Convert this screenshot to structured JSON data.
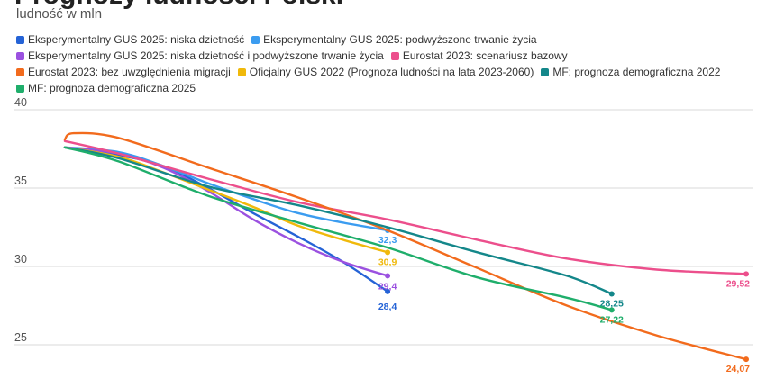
{
  "chart_data": {
    "type": "line",
    "title": "Prognozy ludności Polski",
    "subtitle": "ludność w mln",
    "xlabel": "",
    "ylabel": "ludność w mln",
    "x_range": [
      2023,
      2100
    ],
    "ylim": [
      23,
      40
    ],
    "y_ticks": [
      {
        "value": 25,
        "label": "25"
      },
      {
        "value": 30,
        "label": "30"
      },
      {
        "value": 35,
        "label": "35"
      },
      {
        "value": 40,
        "label": "40"
      }
    ],
    "grid": true,
    "legend_position": "top",
    "series": [
      {
        "name": "Eksperymentalny GUS 2025: niska dzietność",
        "color": "#2563d6",
        "points": [
          [
            2024,
            37.6
          ],
          [
            2030,
            37.1
          ],
          [
            2035,
            36.4
          ],
          [
            2040,
            35.0
          ],
          [
            2045,
            33.4
          ],
          [
            2050,
            31.9
          ],
          [
            2055,
            30.3
          ],
          [
            2060,
            28.4
          ]
        ],
        "end_label": "28,4",
        "label_dy": 20
      },
      {
        "name": "Eksperymentalny GUS 2025: podwyższone trwanie życia",
        "color": "#3b9cf0",
        "points": [
          [
            2024,
            37.6
          ],
          [
            2030,
            37.3
          ],
          [
            2035,
            36.4
          ],
          [
            2040,
            35.3
          ],
          [
            2045,
            34.3
          ],
          [
            2050,
            33.4
          ],
          [
            2055,
            32.8
          ],
          [
            2060,
            32.3
          ]
        ],
        "end_label": "32,3",
        "label_dy": 14
      },
      {
        "name": "Eksperymentalny GUS 2025: niska dzietność i podwyższone trwanie życia",
        "color": "#9b51e0",
        "points": [
          [
            2024,
            37.6
          ],
          [
            2030,
            37.2
          ],
          [
            2035,
            36.3
          ],
          [
            2040,
            34.8
          ],
          [
            2045,
            33.0
          ],
          [
            2050,
            31.5
          ],
          [
            2055,
            30.3
          ],
          [
            2060,
            29.4
          ]
        ],
        "end_label": "29,4",
        "label_dy": 15
      },
      {
        "name": "Eurostat 2023: scenariusz bazowy",
        "color": "#ec4f8c",
        "points": [
          [
            2024,
            38.0
          ],
          [
            2030,
            37.2
          ],
          [
            2040,
            35.6
          ],
          [
            2050,
            34.1
          ],
          [
            2060,
            33.0
          ],
          [
            2070,
            31.7
          ],
          [
            2080,
            30.5
          ],
          [
            2090,
            29.8
          ],
          [
            2100,
            29.52
          ]
        ],
        "end_label": "29,52",
        "label_dy": 14
      },
      {
        "name": "Eurostat 2023: bez uwzględnienia migracji",
        "color": "#f26b1d",
        "points": [
          [
            2024,
            38.1
          ],
          [
            2025,
            38.5
          ],
          [
            2030,
            38.2
          ],
          [
            2040,
            36.3
          ],
          [
            2050,
            34.4
          ],
          [
            2060,
            32.3
          ],
          [
            2070,
            29.9
          ],
          [
            2080,
            27.5
          ],
          [
            2090,
            25.6
          ],
          [
            2100,
            24.07
          ]
        ],
        "end_label": "24,07",
        "label_dy": 14
      },
      {
        "name": "Oficjalny GUS 2022 (Prognoza ludności na lata 2023-2060)",
        "color": "#f0b90b",
        "points": [
          [
            2024,
            37.6
          ],
          [
            2030,
            37.0
          ],
          [
            2035,
            36.0
          ],
          [
            2040,
            34.9
          ],
          [
            2045,
            33.8
          ],
          [
            2050,
            32.6
          ],
          [
            2055,
            31.7
          ],
          [
            2060,
            30.9
          ]
        ],
        "end_label": "30,9",
        "label_dy": 14
      },
      {
        "name": "MF: prognoza demograficzna 2022",
        "color": "#14878a",
        "points": [
          [
            2024,
            37.6
          ],
          [
            2030,
            36.9
          ],
          [
            2040,
            35.1
          ],
          [
            2050,
            33.9
          ],
          [
            2060,
            32.5
          ],
          [
            2070,
            30.9
          ],
          [
            2080,
            29.4
          ],
          [
            2085,
            28.25
          ]
        ],
        "end_label": "28,25",
        "label_dy": 14
      },
      {
        "name": "MF: prognoza demograficzna 2025",
        "color": "#1fae6b",
        "points": [
          [
            2024,
            37.6
          ],
          [
            2030,
            36.7
          ],
          [
            2040,
            34.5
          ],
          [
            2050,
            32.8
          ],
          [
            2060,
            31.2
          ],
          [
            2070,
            29.3
          ],
          [
            2080,
            28.0
          ],
          [
            2085,
            27.22
          ]
        ],
        "end_label": "27,22",
        "label_dy": 14
      }
    ]
  }
}
